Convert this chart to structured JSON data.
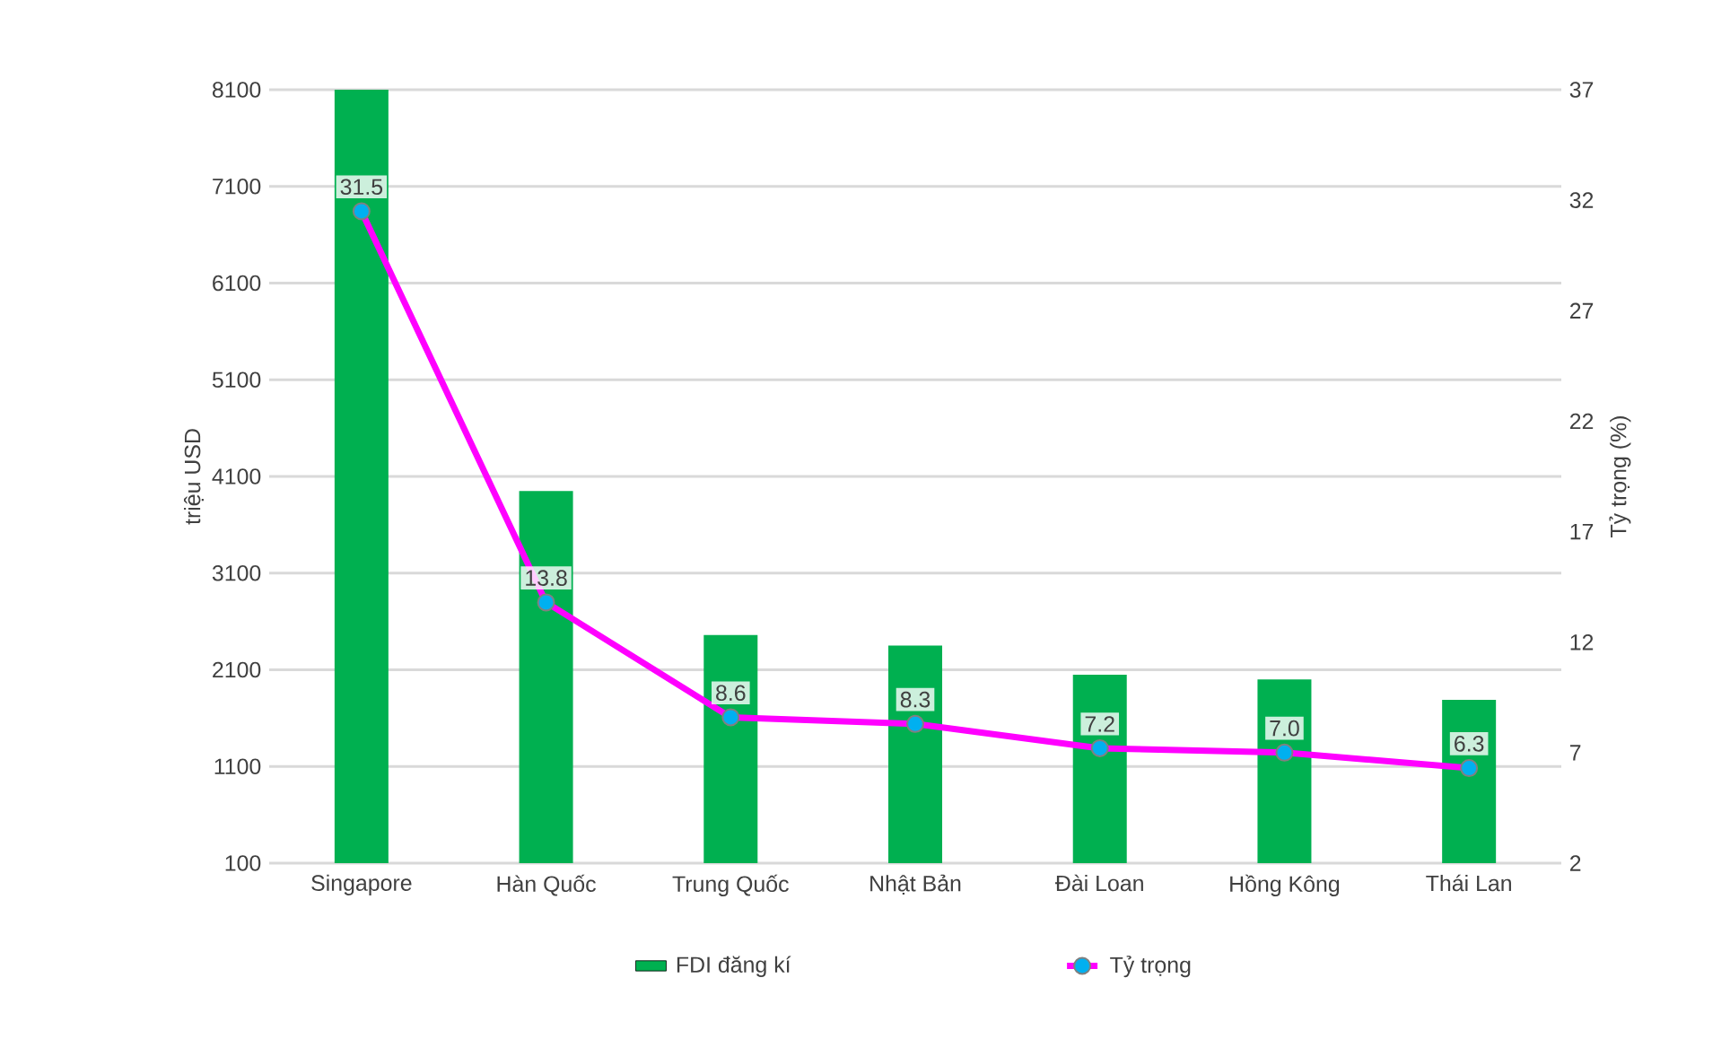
{
  "chart_data": {
    "type": "bar",
    "ylabel": "triệu USD",
    "y2label": "Tỷ trọng (%)",
    "categories": [
      "Singapore",
      "Hàn Quốc",
      "Trung Quốc",
      "Nhật Bản",
      "Đài Loan",
      "Hồng Kông",
      "Thái Lan"
    ],
    "series": [
      {
        "name": "FDI đăng kí",
        "color": "#00b050",
        "values": [
          8100,
          3950,
          2460,
          2350,
          2050,
          2000,
          1790
        ]
      },
      {
        "name": "Tỷ trọng",
        "type": "line",
        "axis": "y2",
        "color": "#ff00ff",
        "values": [
          31.5,
          13.8,
          8.6,
          8.3,
          7.2,
          7.0,
          6.3
        ],
        "value_labels": [
          "31.5",
          "13.8",
          "8.6",
          "8.3",
          "7.2",
          "7.0",
          "6.3"
        ]
      }
    ],
    "ylim": [
      100,
      8100
    ],
    "yticks": [
      100,
      1100,
      2100,
      3100,
      4100,
      5100,
      6100,
      7100,
      8100
    ],
    "y2lim": [
      2,
      37
    ],
    "y2ticks": [
      2,
      7,
      12,
      17,
      22,
      27,
      32,
      37
    ],
    "grid": "y",
    "legend": "bottom",
    "marker": "circle",
    "line_style": "solid"
  }
}
